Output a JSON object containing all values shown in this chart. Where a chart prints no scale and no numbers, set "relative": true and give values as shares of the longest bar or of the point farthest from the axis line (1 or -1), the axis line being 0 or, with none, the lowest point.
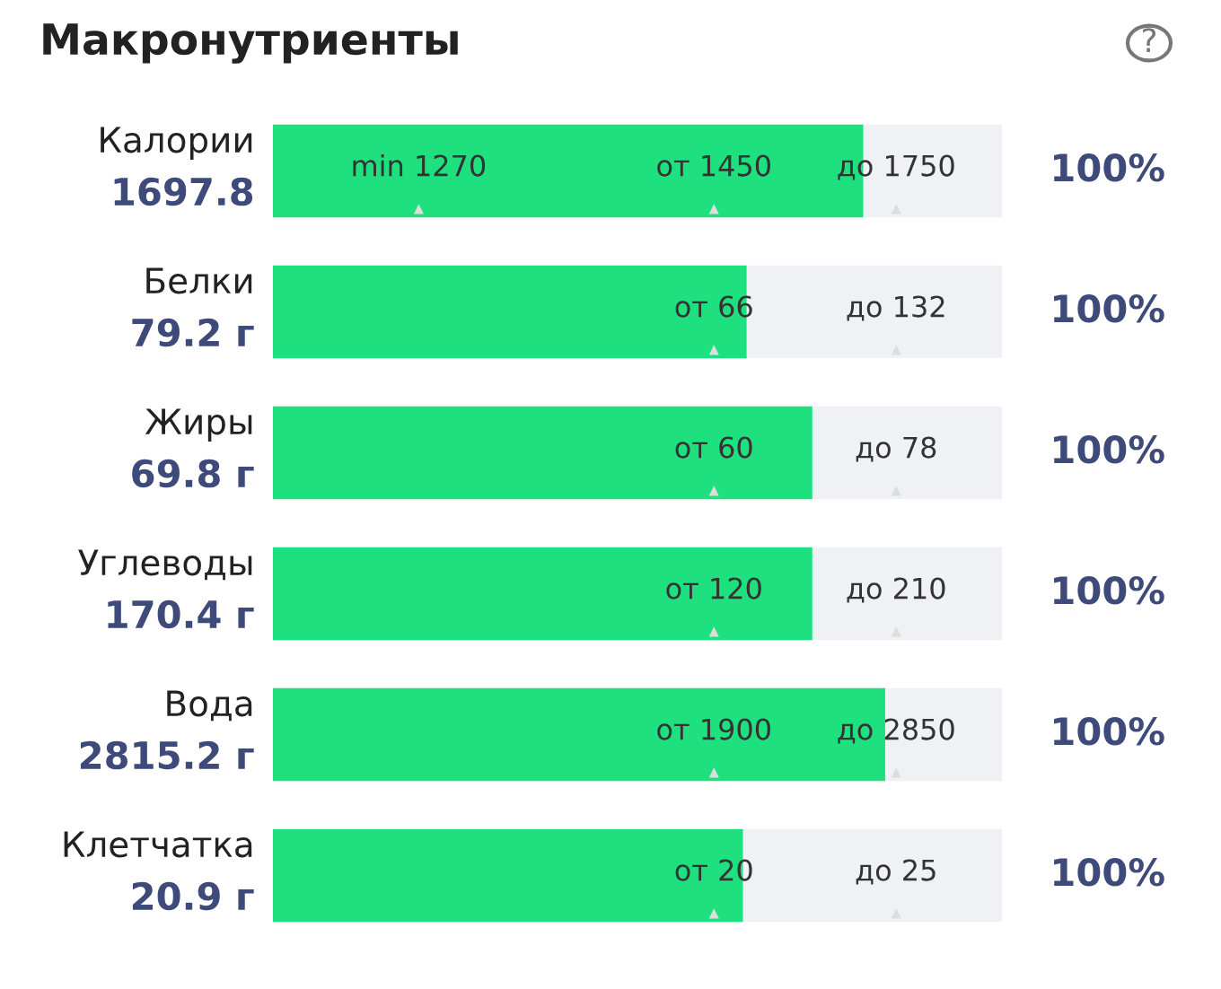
{
  "chart_data": {
    "type": "bar",
    "orientation": "horizontal",
    "stacked": true,
    "relative": true,
    "title": "Макронутриенты",
    "categories": [
      "Калории",
      "Белки",
      "Жиры",
      "Углеводы",
      "Вода",
      "Клетчатка"
    ],
    "series": [
      {
        "color": "#1ee07f",
        "values": [
          0.81,
          0.65,
          0.74,
          0.74,
          0.84,
          0.645
        ]
      },
      {
        "color": "#f0f1f4",
        "values": [
          0.19,
          0.35,
          0.26,
          0.26,
          0.16,
          0.355
        ]
      }
    ],
    "annotations": [
      "1697.8",
      "79.2 г",
      "69.8 г",
      "170.4 г",
      "2815.2 г",
      "20.9 г",
      "100%",
      "100%",
      "100%",
      "100%",
      "100%",
      "100%",
      "min 1270",
      "от 1450",
      "до 1750",
      "от 66",
      "до 132",
      "от 60",
      "до 78",
      "от 120",
      "до 210",
      "от 1900",
      "до 2850",
      "от 20",
      "до 25",
      "?"
    ]
  }
}
